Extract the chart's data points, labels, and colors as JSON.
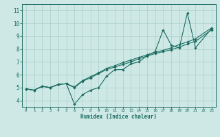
{
  "xlabel": "Humidex (Indice chaleur)",
  "xlim": [
    -0.5,
    23.5
  ],
  "ylim": [
    3.5,
    11.5
  ],
  "xticks": [
    0,
    1,
    2,
    3,
    4,
    5,
    6,
    7,
    8,
    9,
    10,
    11,
    12,
    13,
    14,
    15,
    16,
    17,
    18,
    19,
    20,
    21,
    22,
    23
  ],
  "yticks": [
    4,
    5,
    6,
    7,
    8,
    9,
    10,
    11
  ],
  "bg_color": "#cde8e5",
  "grid_color": "#aacfcc",
  "line_color": "#1a6b60",
  "x_zig": [
    0,
    1,
    2,
    3,
    4,
    5,
    6,
    7,
    8,
    9,
    10,
    11,
    12,
    13,
    14,
    15,
    16,
    17,
    18,
    19,
    20,
    21,
    23
  ],
  "y_zig": [
    4.9,
    4.8,
    5.1,
    5.0,
    5.25,
    5.3,
    3.7,
    4.45,
    4.8,
    5.0,
    5.9,
    6.4,
    6.4,
    6.85,
    7.0,
    7.5,
    7.8,
    9.5,
    8.3,
    8.1,
    10.8,
    8.1,
    9.6
  ],
  "x_lin1": [
    0,
    1,
    2,
    3,
    4,
    5,
    6,
    7,
    8,
    9,
    10,
    11,
    12,
    13,
    14,
    15,
    16,
    17,
    18,
    19,
    20,
    21,
    23
  ],
  "y_lin1": [
    4.9,
    4.8,
    5.1,
    5.0,
    5.25,
    5.3,
    5.0,
    5.5,
    5.75,
    6.1,
    6.4,
    6.6,
    6.8,
    7.0,
    7.25,
    7.45,
    7.65,
    7.8,
    7.95,
    8.15,
    8.4,
    8.6,
    9.5
  ],
  "x_lin2": [
    0,
    1,
    2,
    3,
    4,
    5,
    6,
    7,
    8,
    9,
    10,
    11,
    12,
    13,
    14,
    15,
    16,
    17,
    18,
    19,
    20,
    21,
    23
  ],
  "y_lin2": [
    4.9,
    4.8,
    5.1,
    5.0,
    5.25,
    5.3,
    5.05,
    5.55,
    5.85,
    6.15,
    6.5,
    6.7,
    6.95,
    7.15,
    7.35,
    7.55,
    7.75,
    7.9,
    8.1,
    8.35,
    8.55,
    8.8,
    9.65
  ]
}
